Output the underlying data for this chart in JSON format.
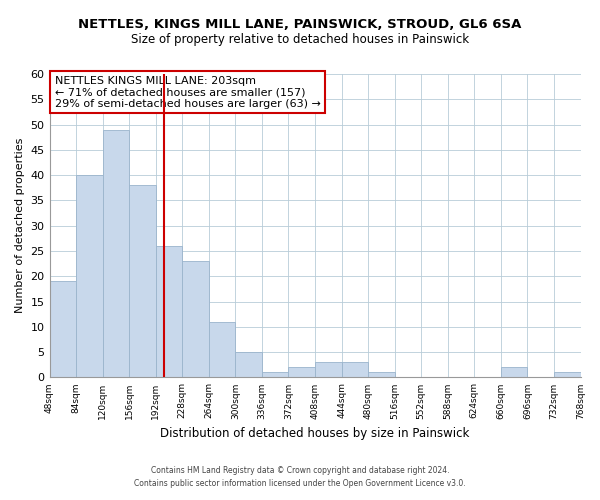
{
  "title": "NETTLES, KINGS MILL LANE, PAINSWICK, STROUD, GL6 6SA",
  "subtitle": "Size of property relative to detached houses in Painswick",
  "xlabel": "Distribution of detached houses by size in Painswick",
  "ylabel": "Number of detached properties",
  "bar_color": "#c8d8eb",
  "bar_edge_color": "#9ab4cc",
  "bin_edges": [
    48,
    84,
    120,
    156,
    192,
    228,
    264,
    300,
    336,
    372,
    408,
    444,
    480,
    516,
    552,
    588,
    624,
    660,
    696,
    732,
    768
  ],
  "bar_heights": [
    19,
    40,
    49,
    38,
    26,
    23,
    11,
    5,
    1,
    2,
    3,
    3,
    1,
    0,
    0,
    0,
    0,
    2,
    0,
    1,
    0
  ],
  "tick_labels": [
    "48sqm",
    "84sqm",
    "120sqm",
    "156sqm",
    "192sqm",
    "228sqm",
    "264sqm",
    "300sqm",
    "336sqm",
    "372sqm",
    "408sqm",
    "444sqm",
    "480sqm",
    "516sqm",
    "552sqm",
    "588sqm",
    "624sqm",
    "660sqm",
    "696sqm",
    "732sqm",
    "768sqm"
  ],
  "property_size": 203,
  "vline_color": "#cc0000",
  "annotation_box_color": "#ffffff",
  "annotation_box_edge_color": "#cc0000",
  "annotation_line1": "NETTLES KINGS MILL LANE: 203sqm",
  "annotation_line2": "← 71% of detached houses are smaller (157)",
  "annotation_line3": "29% of semi-detached houses are larger (63) →",
  "ylim": [
    0,
    60
  ],
  "yticks": [
    0,
    5,
    10,
    15,
    20,
    25,
    30,
    35,
    40,
    45,
    50,
    55,
    60
  ],
  "footer_line1": "Contains HM Land Registry data © Crown copyright and database right 2024.",
  "footer_line2": "Contains public sector information licensed under the Open Government Licence v3.0.",
  "background_color": "#ffffff",
  "grid_color": "#b8ccd8"
}
